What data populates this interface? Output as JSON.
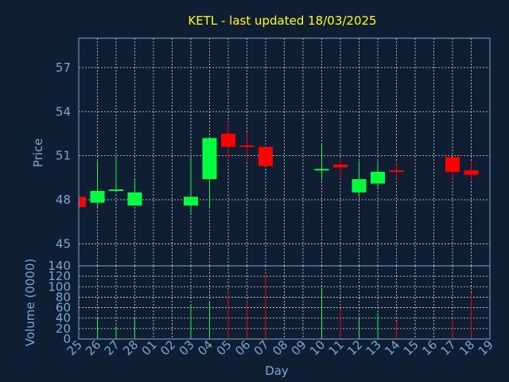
{
  "chart_data": [
    {
      "type": "candlestick",
      "title": "KETL - last updated 18/03/2025",
      "ylabel": "Price",
      "ylim": [
        43.5,
        59
      ],
      "yticks": [
        "45",
        "48",
        "51",
        "54",
        "57"
      ],
      "ytick_values": [
        45,
        48,
        51,
        54,
        57
      ],
      "grid": true,
      "colors": {
        "up": "#00ff3c",
        "down": "#ff0000",
        "title": "#ffff00",
        "label": "#7aa6d2",
        "grid": "#dcdcdc",
        "frame": "#7aa6d2",
        "background": "#0f1e33"
      },
      "candles": [
        {
          "day": "25",
          "open": 48.2,
          "close": 47.5,
          "high": 48.3,
          "low": 47.3
        },
        {
          "day": "26",
          "open": 47.8,
          "close": 48.6,
          "high": 50.6,
          "low": 47.5
        },
        {
          "day": "27",
          "open": 48.6,
          "close": 48.7,
          "high": 50.9,
          "low": 48.5
        },
        {
          "day": "28",
          "open": 47.6,
          "close": 48.5,
          "high": 49.4,
          "low": 47.6
        },
        {
          "day": "03",
          "open": 47.6,
          "close": 48.2,
          "high": 51.0,
          "low": 47.1
        },
        {
          "day": "04",
          "open": 49.4,
          "close": 52.2,
          "high": 52.2,
          "low": 47.4
        },
        {
          "day": "05",
          "open": 52.5,
          "close": 51.6,
          "high": 53.3,
          "low": 50.7
        },
        {
          "day": "06",
          "open": 51.7,
          "close": 51.6,
          "high": 52.6,
          "low": 50.6
        },
        {
          "day": "07",
          "open": 51.6,
          "close": 50.3,
          "high": 51.6,
          "low": 50.3
        },
        {
          "day": "10",
          "open": 50.0,
          "close": 50.1,
          "high": 51.8,
          "low": 49.3
        },
        {
          "day": "11",
          "open": 50.4,
          "close": 50.2,
          "high": 50.8,
          "low": 49.4
        },
        {
          "day": "12",
          "open": 48.5,
          "close": 49.4,
          "high": 50.6,
          "low": 48.2
        },
        {
          "day": "13",
          "open": 49.1,
          "close": 49.9,
          "high": 50.6,
          "low": 48.8
        },
        {
          "day": "14",
          "open": 50.0,
          "close": 49.9,
          "high": 50.6,
          "low": 49.4
        },
        {
          "day": "17",
          "open": 50.9,
          "close": 49.9,
          "high": 50.9,
          "low": 49.4
        },
        {
          "day": "18",
          "open": 50.0,
          "close": 49.7,
          "high": 50.6,
          "low": 49.3
        }
      ]
    },
    {
      "type": "bar",
      "ylabel": "Volume (0000)",
      "xlabel": "Day",
      "ylim": [
        0,
        140
      ],
      "yticks": [
        "0",
        "20",
        "40",
        "60",
        "80",
        "100",
        "120",
        "140"
      ],
      "ytick_values": [
        0,
        20,
        40,
        60,
        80,
        100,
        120,
        140
      ],
      "categories": [
        "25",
        "26",
        "27",
        "28",
        "01",
        "02",
        "03",
        "04",
        "05",
        "06",
        "07",
        "08",
        "09",
        "10",
        "11",
        "12",
        "13",
        "14",
        "15",
        "16",
        "17",
        "18",
        "19"
      ],
      "volumes": [
        {
          "day": "26",
          "value": 40,
          "dir": "up"
        },
        {
          "day": "27",
          "value": 22,
          "dir": "up"
        },
        {
          "day": "28",
          "value": 40,
          "dir": "up"
        },
        {
          "day": "03",
          "value": 65,
          "dir": "up"
        },
        {
          "day": "04",
          "value": 72,
          "dir": "up"
        },
        {
          "day": "05",
          "value": 90,
          "dir": "down"
        },
        {
          "day": "06",
          "value": 72,
          "dir": "down"
        },
        {
          "day": "07",
          "value": 122,
          "dir": "down"
        },
        {
          "day": "10",
          "value": 96,
          "dir": "up"
        },
        {
          "day": "11",
          "value": 58,
          "dir": "down"
        },
        {
          "day": "12",
          "value": 40,
          "dir": "up"
        },
        {
          "day": "13",
          "value": 50,
          "dir": "up"
        },
        {
          "day": "14",
          "value": 32,
          "dir": "down"
        },
        {
          "day": "17",
          "value": 40,
          "dir": "down"
        },
        {
          "day": "18",
          "value": 88,
          "dir": "down"
        }
      ]
    }
  ]
}
